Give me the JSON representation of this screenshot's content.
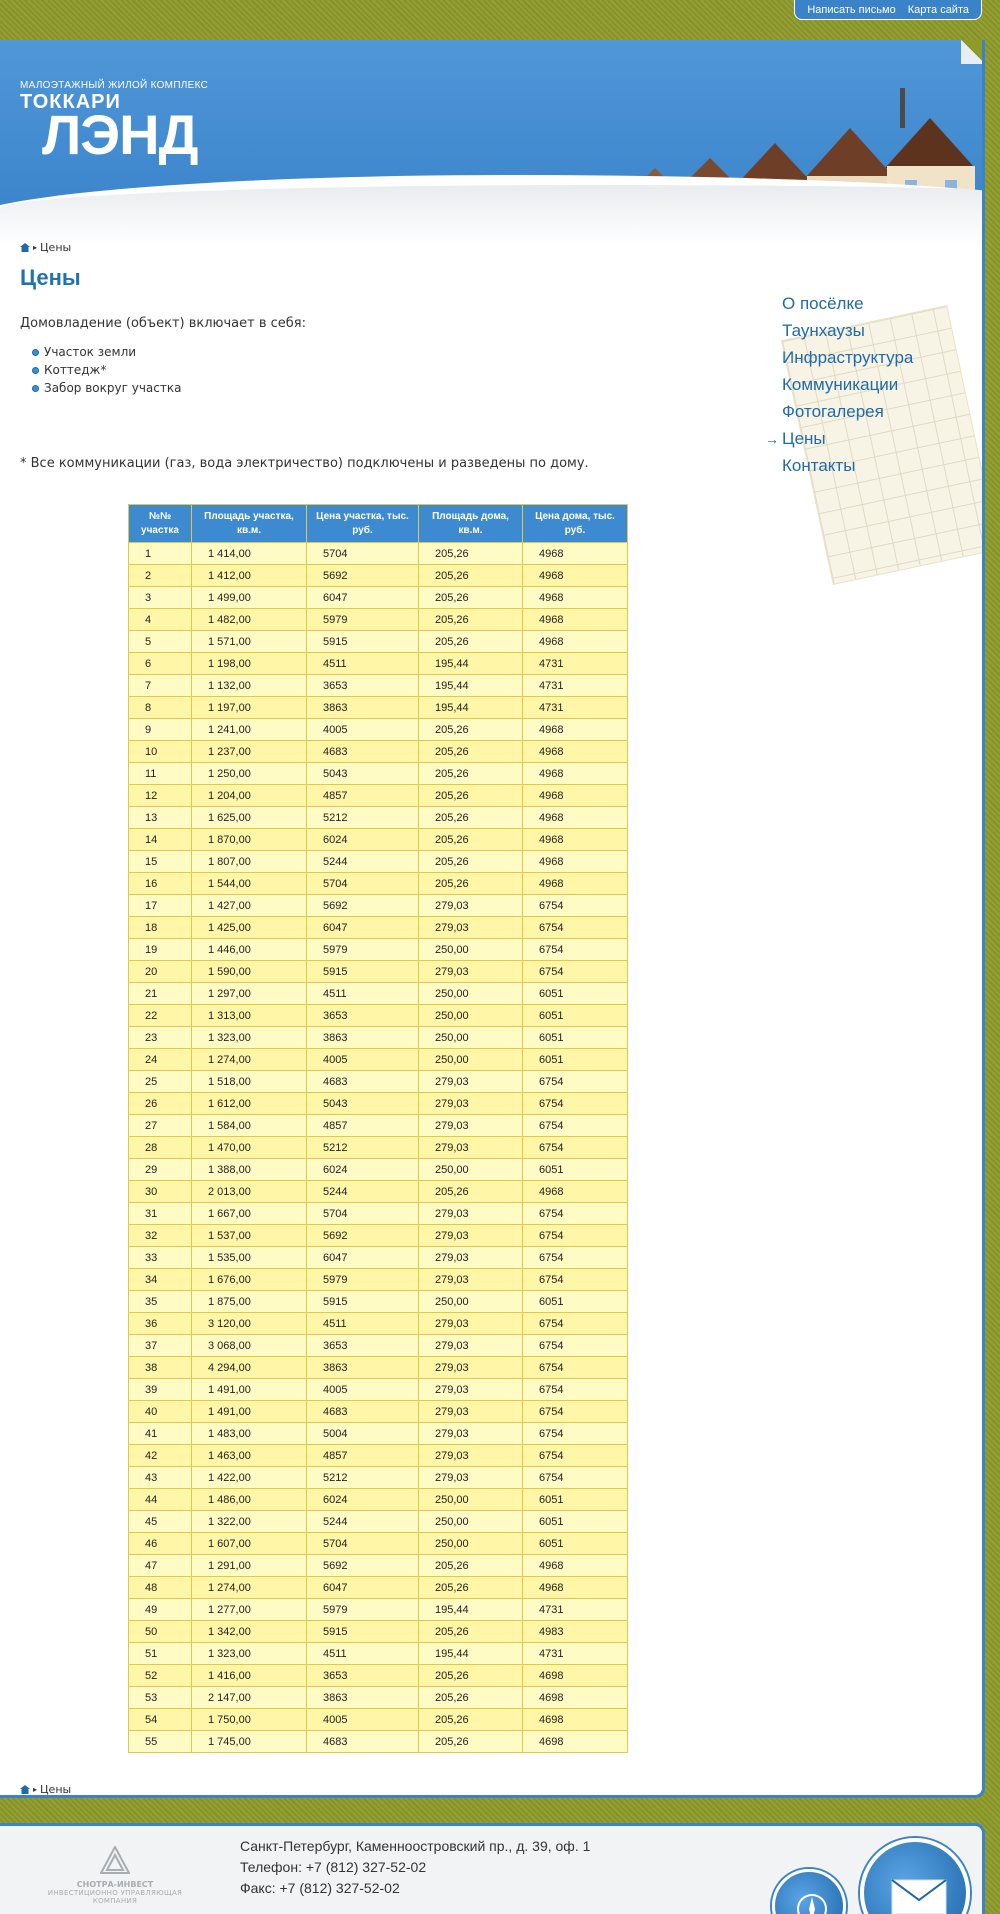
{
  "toplinks": {
    "write": "Написать письмо",
    "sitemap": "Карта сайта"
  },
  "logo": {
    "sub": "МАЛОЭТАЖНЫЙ ЖИЛОЙ КОМПЛЕКС",
    "line1": "ТОККАРИ",
    "line2": "ЛЭНД"
  },
  "breadcrumb": {
    "current": "Цены"
  },
  "page": {
    "title": "Цены",
    "intro": "Домовладение (объект) включает в себя:",
    "bullets": [
      "Участок земли",
      "Коттедж*",
      "Забор вокруг участка"
    ],
    "note": "* Все коммуникации (газ, вода электричество) подключены и разведены по дому."
  },
  "sidenav": [
    {
      "label": "О посёлке",
      "active": false
    },
    {
      "label": "Таунхаузы",
      "active": false
    },
    {
      "label": "Инфраструктура",
      "active": false
    },
    {
      "label": "Коммуникации",
      "active": false
    },
    {
      "label": "Фотогалерея",
      "active": false
    },
    {
      "label": "Цены",
      "active": true
    },
    {
      "label": "Контакты",
      "active": false
    }
  ],
  "table": {
    "headers": [
      "№№ участка",
      "Площадь участка, кв.м.",
      "Цена участка, тыс. руб.",
      "Площадь дома, кв.м.",
      "Цена дома, тыс. руб."
    ],
    "rows": [
      [
        "1",
        "1 414,00",
        "5704",
        "205,26",
        "4968"
      ],
      [
        "2",
        "1 412,00",
        "5692",
        "205,26",
        "4968"
      ],
      [
        "3",
        "1 499,00",
        "6047",
        "205,26",
        "4968"
      ],
      [
        "4",
        "1 482,00",
        "5979",
        "205,26",
        "4968"
      ],
      [
        "5",
        "1 571,00",
        "5915",
        "205,26",
        "4968"
      ],
      [
        "6",
        "1 198,00",
        "4511",
        "195,44",
        "4731"
      ],
      [
        "7",
        "1 132,00",
        "3653",
        "195,44",
        "4731"
      ],
      [
        "8",
        "1 197,00",
        "3863",
        "195,44",
        "4731"
      ],
      [
        "9",
        "1 241,00",
        "4005",
        "205,26",
        "4968"
      ],
      [
        "10",
        "1 237,00",
        "4683",
        "205,26",
        "4968"
      ],
      [
        "11",
        "1 250,00",
        "5043",
        "205,26",
        "4968"
      ],
      [
        "12",
        "1 204,00",
        "4857",
        "205,26",
        "4968"
      ],
      [
        "13",
        "1 625,00",
        "5212",
        "205,26",
        "4968"
      ],
      [
        "14",
        "1 870,00",
        "6024",
        "205,26",
        "4968"
      ],
      [
        "15",
        "1 807,00",
        "5244",
        "205,26",
        "4968"
      ],
      [
        "16",
        "1 544,00",
        "5704",
        "205,26",
        "4968"
      ],
      [
        "17",
        "1 427,00",
        "5692",
        "279,03",
        "6754"
      ],
      [
        "18",
        "1 425,00",
        "6047",
        "279,03",
        "6754"
      ],
      [
        "19",
        "1 446,00",
        "5979",
        "250,00",
        "6754"
      ],
      [
        "20",
        "1 590,00",
        "5915",
        "279,03",
        "6754"
      ],
      [
        "21",
        "1 297,00",
        "4511",
        "250,00",
        "6051"
      ],
      [
        "22",
        "1 313,00",
        "3653",
        "250,00",
        "6051"
      ],
      [
        "23",
        "1 323,00",
        "3863",
        "250,00",
        "6051"
      ],
      [
        "24",
        "1 274,00",
        "4005",
        "250,00",
        "6051"
      ],
      [
        "25",
        "1 518,00",
        "4683",
        "279,03",
        "6754"
      ],
      [
        "26",
        "1 612,00",
        "5043",
        "279,03",
        "6754"
      ],
      [
        "27",
        "1 584,00",
        "4857",
        "279,03",
        "6754"
      ],
      [
        "28",
        "1 470,00",
        "5212",
        "279,03",
        "6754"
      ],
      [
        "29",
        "1 388,00",
        "6024",
        "250,00",
        "6051"
      ],
      [
        "30",
        "2 013,00",
        "5244",
        "205,26",
        "4968"
      ],
      [
        "31",
        "1 667,00",
        "5704",
        "279,03",
        "6754"
      ],
      [
        "32",
        "1 537,00",
        "5692",
        "279,03",
        "6754"
      ],
      [
        "33",
        "1 535,00",
        "6047",
        "279,03",
        "6754"
      ],
      [
        "34",
        "1 676,00",
        "5979",
        "279,03",
        "6754"
      ],
      [
        "35",
        "1 875,00",
        "5915",
        "250,00",
        "6051"
      ],
      [
        "36",
        "3 120,00",
        "4511",
        "279,03",
        "6754"
      ],
      [
        "37",
        "3 068,00",
        "3653",
        "279,03",
        "6754"
      ],
      [
        "38",
        "4 294,00",
        "3863",
        "279,03",
        "6754"
      ],
      [
        "39",
        "1 491,00",
        "4005",
        "279,03",
        "6754"
      ],
      [
        "40",
        "1 491,00",
        "4683",
        "279,03",
        "6754"
      ],
      [
        "41",
        "1 483,00",
        "5004",
        "279,03",
        "6754"
      ],
      [
        "42",
        "1 463,00",
        "4857",
        "279,03",
        "6754"
      ],
      [
        "43",
        "1 422,00",
        "5212",
        "279,03",
        "6754"
      ],
      [
        "44",
        "1 486,00",
        "6024",
        "250,00",
        "6051"
      ],
      [
        "45",
        "1 322,00",
        "5244",
        "250,00",
        "6051"
      ],
      [
        "46",
        "1 607,00",
        "5704",
        "250,00",
        "6051"
      ],
      [
        "47",
        "1 291,00",
        "5692",
        "205,26",
        "4968"
      ],
      [
        "48",
        "1 274,00",
        "6047",
        "205,26",
        "4968"
      ],
      [
        "49",
        "1 277,00",
        "5979",
        "195,44",
        "4731"
      ],
      [
        "50",
        "1 342,00",
        "5915",
        "205,26",
        "4983"
      ],
      [
        "51",
        "1 323,00",
        "4511",
        "195,44",
        "4731"
      ],
      [
        "52",
        "1 416,00",
        "3653",
        "205,26",
        "4698"
      ],
      [
        "53",
        "2 147,00",
        "3863",
        "205,26",
        "4698"
      ],
      [
        "54",
        "1 750,00",
        "4005",
        "205,26",
        "4698"
      ],
      [
        "55",
        "1 745,00",
        "4683",
        "205,26",
        "4698"
      ]
    ]
  },
  "bottomnav": [
    {
      "label": "О посёлке",
      "link": true
    },
    {
      "label": "Таунхаузы",
      "link": true
    },
    {
      "label": "Инфраструктура",
      "link": true
    },
    {
      "label": "Коммуникации",
      "link": true
    },
    {
      "label": "Фотогалерея",
      "link": true
    },
    {
      "label": "Цены",
      "link": false
    },
    {
      "label": "Контакты",
      "link": true
    }
  ],
  "footer": {
    "company_name": "СНОТРА-ИНВЕСТ",
    "company_slogan": "ИНВЕСТИЦИОННО УПРАВЛЯЮЩАЯ КОМПАНИЯ",
    "address": "Санкт-Петербург, Каменноостровский пр., д. 39, оф. 1",
    "phone": "Телефон: +7 (812) 327-52-02",
    "fax": "Факс: +7 (812) 327-52-02"
  },
  "colors": {
    "brand_blue": "#3b83c9",
    "olive_bg": "#8e9a2a",
    "table_row": "#fffbc4",
    "table_border": "#e2c84a"
  }
}
